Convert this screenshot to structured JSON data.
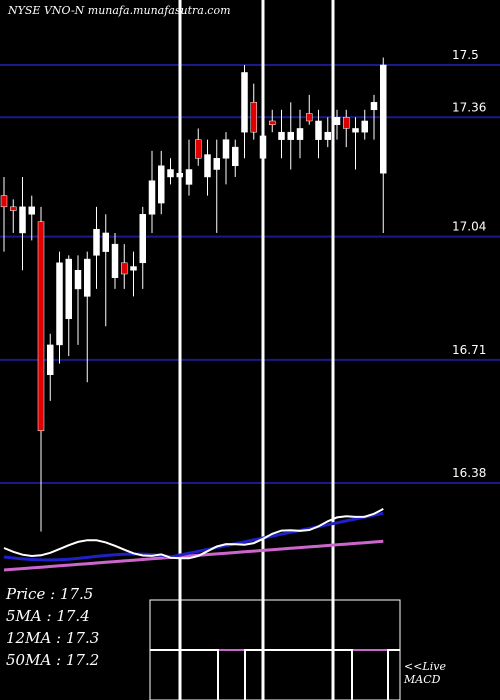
{
  "chart_data": {
    "type": "candlestick",
    "title": "NYSE VNO-N munafa.munafasutra.com",
    "y_ticks": [
      17.5,
      17.36,
      17.04,
      16.71,
      16.38
    ],
    "y_tick_labels": [
      "17.5",
      "17.36",
      "17.04",
      "16.71",
      "16.38"
    ],
    "ylim": [
      16.38,
      17.62
    ],
    "grid": "horizontal",
    "candles": [
      {
        "o": 17.15,
        "h": 17.2,
        "l": 17.0,
        "c": 17.12,
        "color": "red"
      },
      {
        "o": 17.12,
        "h": 17.14,
        "l": 17.05,
        "c": 17.11,
        "color": "red"
      },
      {
        "o": 17.05,
        "h": 17.2,
        "l": 16.95,
        "c": 17.12,
        "color": "white"
      },
      {
        "o": 17.1,
        "h": 17.15,
        "l": 17.03,
        "c": 17.12,
        "color": "white"
      },
      {
        "o": 17.08,
        "h": 17.12,
        "l": 16.25,
        "c": 16.52,
        "color": "red"
      },
      {
        "o": 16.67,
        "h": 16.78,
        "l": 16.6,
        "c": 16.75,
        "color": "white"
      },
      {
        "o": 16.75,
        "h": 17.0,
        "l": 16.7,
        "c": 16.97,
        "color": "white"
      },
      {
        "o": 16.82,
        "h": 16.99,
        "l": 16.72,
        "c": 16.98,
        "color": "white"
      },
      {
        "o": 16.9,
        "h": 16.99,
        "l": 16.75,
        "c": 16.95,
        "color": "white"
      },
      {
        "o": 16.88,
        "h": 17.0,
        "l": 16.65,
        "c": 16.98,
        "color": "white"
      },
      {
        "o": 16.99,
        "h": 17.12,
        "l": 16.9,
        "c": 17.06,
        "color": "white"
      },
      {
        "o": 17.0,
        "h": 17.1,
        "l": 16.8,
        "c": 17.05,
        "color": "white"
      },
      {
        "o": 16.93,
        "h": 17.05,
        "l": 16.9,
        "c": 17.02,
        "color": "white"
      },
      {
        "o": 16.97,
        "h": 17.02,
        "l": 16.9,
        "c": 16.94,
        "color": "red"
      },
      {
        "o": 16.95,
        "h": 17.0,
        "l": 16.88,
        "c": 16.96,
        "color": "white"
      },
      {
        "o": 16.97,
        "h": 17.12,
        "l": 16.9,
        "c": 17.1,
        "color": "white"
      },
      {
        "o": 17.1,
        "h": 17.27,
        "l": 17.05,
        "c": 17.19,
        "color": "white"
      },
      {
        "o": 17.13,
        "h": 17.27,
        "l": 17.1,
        "c": 17.23,
        "color": "white"
      },
      {
        "o": 17.2,
        "h": 17.25,
        "l": 17.18,
        "c": 17.22,
        "color": "white"
      },
      {
        "o": 17.2,
        "h": 17.27,
        "l": 17.12,
        "c": 17.21,
        "color": "white"
      },
      {
        "o": 17.18,
        "h": 17.3,
        "l": 17.15,
        "c": 17.22,
        "color": "white"
      },
      {
        "o": 17.3,
        "h": 17.33,
        "l": 17.23,
        "c": 17.25,
        "color": "red"
      },
      {
        "o": 17.2,
        "h": 17.3,
        "l": 17.15,
        "c": 17.26,
        "color": "white"
      },
      {
        "o": 17.22,
        "h": 17.3,
        "l": 17.05,
        "c": 17.25,
        "color": "white"
      },
      {
        "o": 17.25,
        "h": 17.32,
        "l": 17.18,
        "c": 17.3,
        "color": "white"
      },
      {
        "o": 17.23,
        "h": 17.3,
        "l": 17.2,
        "c": 17.28,
        "color": "white"
      },
      {
        "o": 17.32,
        "h": 17.5,
        "l": 17.25,
        "c": 17.48,
        "color": "white"
      },
      {
        "o": 17.32,
        "h": 17.45,
        "l": 17.3,
        "c": 17.4,
        "color": "red"
      },
      {
        "o": 17.25,
        "h": 17.33,
        "l": 17.22,
        "c": 17.31,
        "color": "white"
      },
      {
        "o": 17.35,
        "h": 17.38,
        "l": 17.32,
        "c": 17.34,
        "color": "red"
      },
      {
        "o": 17.3,
        "h": 17.38,
        "l": 17.25,
        "c": 17.32,
        "color": "white"
      },
      {
        "o": 17.3,
        "h": 17.4,
        "l": 17.22,
        "c": 17.32,
        "color": "white"
      },
      {
        "o": 17.3,
        "h": 17.38,
        "l": 17.25,
        "c": 17.33,
        "color": "white"
      },
      {
        "o": 17.37,
        "h": 17.42,
        "l": 17.34,
        "c": 17.35,
        "color": "red"
      },
      {
        "o": 17.35,
        "h": 17.38,
        "l": 17.25,
        "c": 17.3,
        "color": "white"
      },
      {
        "o": 17.32,
        "h": 17.36,
        "l": 17.28,
        "c": 17.3,
        "color": "white"
      },
      {
        "o": 17.34,
        "h": 17.38,
        "l": 17.3,
        "c": 17.36,
        "color": "white"
      },
      {
        "o": 17.36,
        "h": 17.38,
        "l": 17.28,
        "c": 17.33,
        "color": "red"
      },
      {
        "o": 17.32,
        "h": 17.36,
        "l": 17.22,
        "c": 17.33,
        "color": "white"
      },
      {
        "o": 17.32,
        "h": 17.38,
        "l": 17.3,
        "c": 17.35,
        "color": "white"
      },
      {
        "o": 17.38,
        "h": 17.42,
        "l": 17.3,
        "c": 17.4,
        "color": "white"
      },
      {
        "o": 17.21,
        "h": 17.52,
        "l": 17.05,
        "c": 17.5,
        "color": "white"
      }
    ],
    "legend": [
      {
        "label": "Price",
        "value": "17.5"
      },
      {
        "label": "5MA",
        "value": "17.4"
      },
      {
        "label": "12MA",
        "value": "17.3"
      },
      {
        "label": "50MA",
        "value": "17.2"
      }
    ],
    "macd_label_line1": "<<Live",
    "macd_label_line2": "MACD",
    "colors": {
      "up": "#ffffff",
      "down": "#e00000",
      "grid": "#1a1a8c",
      "ma_fast": "#ffffff",
      "ma_mid": "#2020c8",
      "ma_slow": "#cc66cc",
      "macd": "#ffffff"
    }
  }
}
